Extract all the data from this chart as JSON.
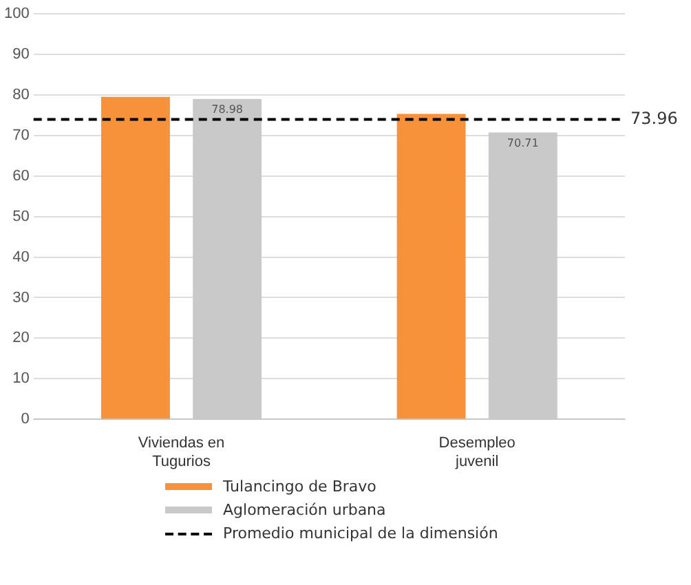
{
  "chart_data": {
    "type": "bar",
    "categories": [
      "Viviendas en Tugurios",
      "Desempleo juvenil"
    ],
    "series": [
      {
        "name": "Tulancingo de Bravo",
        "color": "#f7923a",
        "values": [
          79.5,
          75.3
        ]
      },
      {
        "name": "Aglomeración urbana",
        "color": "#c9c9c9",
        "values": [
          78.98,
          70.71
        ],
        "value_labels": [
          "78.98",
          "70.71"
        ]
      }
    ],
    "ylim": [
      0,
      100
    ],
    "yticks": [
      0,
      10,
      20,
      30,
      40,
      50,
      60,
      70,
      80,
      90,
      100
    ],
    "grid": "y",
    "legend": "bottom",
    "annotations": [
      "73.96"
    ],
    "ref_lines": [
      {
        "axis": "y",
        "value": 73.96,
        "label": "Promedio municipal de la dimensión",
        "color": "#000000",
        "line_style": "dashed"
      }
    ]
  }
}
